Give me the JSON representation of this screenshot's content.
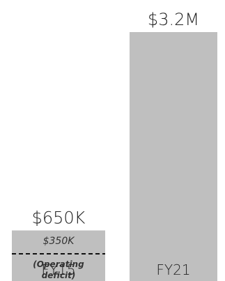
{
  "chart_data": {
    "type": "bar",
    "categories": [
      "FY15",
      "FY21"
    ],
    "values": [
      650000,
      3200000
    ],
    "value_labels": [
      "$650K",
      "$3.2M"
    ],
    "ylim": [
      0,
      3200000
    ],
    "grid": false,
    "bar_color": "#bfbfbf",
    "annotation": {
      "category": "FY15",
      "value": 350000,
      "value_label": "$350K",
      "note_line1": "(Operating",
      "note_line2": "deficit)",
      "line_style": "dashed"
    }
  }
}
